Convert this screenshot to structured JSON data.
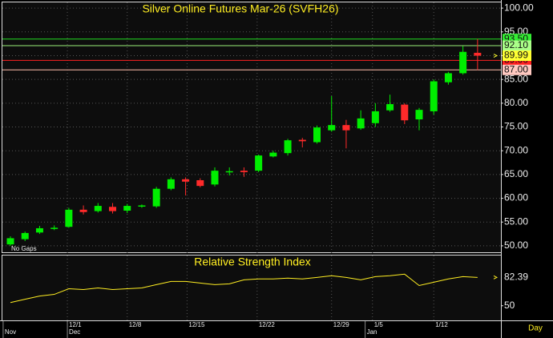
{
  "chart_data": [
    {
      "type": "candlestick",
      "title": "Silver Online Futures Mar-26 (SVFH26)",
      "note": "No Gaps",
      "open": [
        50.3,
        51.4,
        52.8,
        53.6,
        54,
        57.6,
        57.3,
        58.2,
        57.4,
        58.3,
        58.3,
        62,
        64,
        63.8,
        62.9,
        65.5,
        65.8,
        65.8,
        68.8,
        69.5,
        72.3,
        71.8,
        74.3,
        75.4,
        74.7,
        75.8,
        78.5,
        79.7,
        76.6,
        78.3,
        84.4,
        86.3,
        90.6
      ],
      "high": [
        52,
        53,
        54.2,
        54.3,
        58,
        58.5,
        59,
        59,
        58.8,
        58.7,
        62.4,
        64.4,
        64.4,
        64.2,
        66.5,
        66.5,
        66.5,
        69.2,
        70,
        72.5,
        72.7,
        75.3,
        81.5,
        76.5,
        78.5,
        80,
        81.8,
        80,
        79,
        85,
        86.6,
        92,
        93.5
      ],
      "low": [
        50,
        51,
        52.5,
        53.3,
        53.8,
        56.6,
        57,
        56.8,
        56.9,
        58,
        58,
        61.7,
        60.6,
        62.3,
        62.5,
        64.8,
        64.5,
        65.5,
        68.6,
        69,
        70.7,
        71.5,
        74,
        70.5,
        74.4,
        75,
        78.2,
        75.6,
        74.3,
        77.6,
        83.9,
        86,
        87
      ],
      "close": [
        51.6,
        52.7,
        53.7,
        53.8,
        57.6,
        57.1,
        58.4,
        57.3,
        58.4,
        58.5,
        62,
        64,
        63.5,
        62.6,
        65.8,
        65.7,
        65.5,
        69,
        69.6,
        72.2,
        72,
        74.9,
        75.4,
        74.3,
        76.8,
        78.3,
        79.8,
        76.4,
        78.6,
        84.6,
        86.3,
        90.8,
        89.99
      ],
      "up_color": "#00ee00",
      "down_color": "#ff2a2a",
      "xlim": [
        -0.55,
        33.6
      ],
      "ylim": [
        48.64,
        101.2
      ],
      "yticks": [
        {
          "value": 50,
          "label": "50.00"
        },
        {
          "value": 55,
          "label": "55.00"
        },
        {
          "value": 60,
          "label": "60.00"
        },
        {
          "value": 65,
          "label": "65.00"
        },
        {
          "value": 70,
          "label": "70.00"
        },
        {
          "value": 75,
          "label": "75.00"
        },
        {
          "value": 80,
          "label": "80.00"
        },
        {
          "value": 85,
          "label": "85.00"
        },
        {
          "value": 90,
          "label": "90.00"
        },
        {
          "value": 95,
          "label": "95.00"
        },
        {
          "value": 100,
          "label": "100.00"
        }
      ],
      "grid": true,
      "last_color": "#ffff33",
      "price_lines": [
        {
          "value": 93.5,
          "label": "93.50",
          "color": "#22dd22",
          "label_bg": "#33ee33"
        },
        {
          "value": 92.1,
          "label": "92.10",
          "color": "#99ee77",
          "label_bg": "#aaff88"
        },
        {
          "value": 89,
          "label": "89.00",
          "color": "#ff2020",
          "label_bg": "#ff2020"
        },
        {
          "value": 87,
          "label": "87.00",
          "color": "#ffbbaa",
          "label_bg": "#ffc8c0"
        }
      ]
    },
    {
      "type": "line",
      "title": "Relative Strength Index",
      "color": "#ffee22",
      "values": [
        53.7,
        57.4,
        61.1,
        63,
        69.4,
        68.5,
        70.4,
        68.5,
        69.4,
        70.4,
        74.1,
        77.8,
        77.8,
        75.9,
        74.1,
        75,
        79.6,
        80.6,
        80.6,
        81.5,
        80.6,
        82.4,
        84.3,
        82.4,
        79.6,
        83.3,
        84.3,
        86.1,
        73.1,
        76.9,
        80.6,
        83.3,
        82.39
      ],
      "xlim": [
        -0.55,
        33.6
      ],
      "ylim": [
        33.3,
        107.4
      ],
      "yticks": [
        50
      ],
      "xticks": [
        {
          "value": 3.9,
          "label": "12/1"
        },
        {
          "value": 8.0,
          "label": "12/8"
        },
        {
          "value": 12.1,
          "label": "12/15"
        },
        {
          "value": 16.9,
          "label": "12/22"
        },
        {
          "value": 22.0,
          "label": "12/29"
        },
        {
          "value": 24.8,
          "label": "1/5"
        },
        {
          "value": 29.0,
          "label": "1/12"
        }
      ],
      "month_ticks": [
        {
          "value": -0.5,
          "label": "Nov"
        },
        {
          "value": 3.9,
          "label": "Dec"
        },
        {
          "value": 24.3,
          "label": "Jan"
        }
      ],
      "period": "Day"
    }
  ]
}
